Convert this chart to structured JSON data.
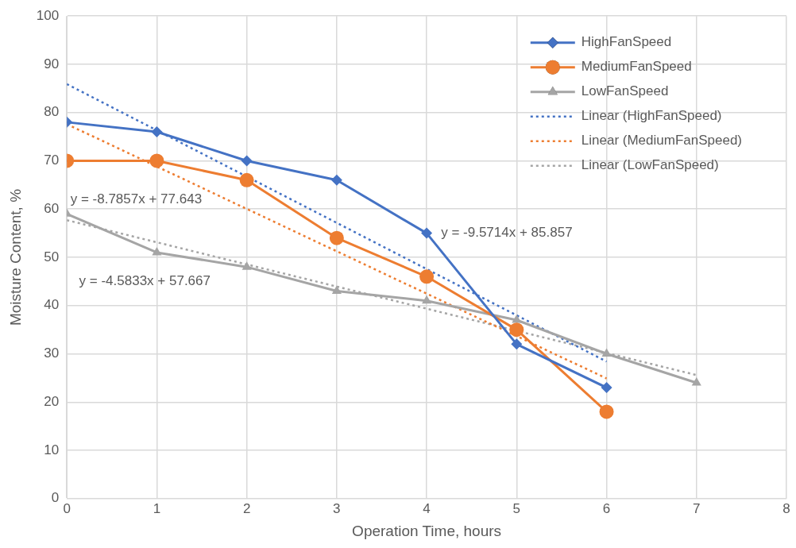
{
  "chart_data": {
    "type": "line",
    "xlabel": "Operation Time, hours",
    "ylabel": "Moisture Content, %",
    "xlim": [
      0,
      8
    ],
    "xticks": [
      0,
      1,
      2,
      3,
      4,
      5,
      6,
      7,
      8
    ],
    "ylim": [
      0,
      100
    ],
    "yticks": [
      0,
      10,
      20,
      30,
      40,
      50,
      60,
      70,
      80,
      90,
      100
    ],
    "grid": true,
    "legend": "top right",
    "series": [
      {
        "name": "HighFanSpeed",
        "color": "#4472c4",
        "x": [
          0,
          1,
          2,
          3,
          4,
          5,
          6
        ],
        "values": [
          78,
          76,
          70,
          66,
          55,
          32,
          23
        ],
        "marker": "diamond",
        "line_style": "solid"
      },
      {
        "name": "MediumFanSpeed",
        "color": "#ed7d31",
        "x": [
          0,
          1,
          2,
          3,
          4,
          5,
          6
        ],
        "values": [
          70,
          70,
          66,
          54,
          46,
          35,
          18
        ],
        "marker": "circle",
        "line_style": "solid"
      },
      {
        "name": "LowFanSpeed",
        "color": "#a5a5a5",
        "x": [
          0,
          1,
          2,
          3,
          4,
          5,
          6,
          7
        ],
        "values": [
          59,
          51,
          48,
          43,
          41,
          37,
          30,
          24
        ],
        "marker": "triangle",
        "line_style": "solid"
      },
      {
        "name": "Linear (HighFanSpeed)",
        "color": "#4472c4",
        "x": [
          0,
          6
        ],
        "values": [
          85.9,
          28.4
        ],
        "marker": "none",
        "line_style": "dotted"
      },
      {
        "name": "Linear (MediumFanSpeed)",
        "color": "#ed7d31",
        "x": [
          0,
          6
        ],
        "values": [
          77.6,
          24.9
        ],
        "marker": "none",
        "line_style": "dotted"
      },
      {
        "name": "Linear (LowFanSpeed)",
        "color": "#a5a5a5",
        "x": [
          0,
          7
        ],
        "values": [
          57.7,
          25.6
        ],
        "marker": "none",
        "line_style": "dotted"
      }
    ],
    "annotations": [
      "y = -8.7857x + 77.643",
      "y = -9.5714x + 85.857",
      "y = -4.5833x + 57.667"
    ]
  }
}
